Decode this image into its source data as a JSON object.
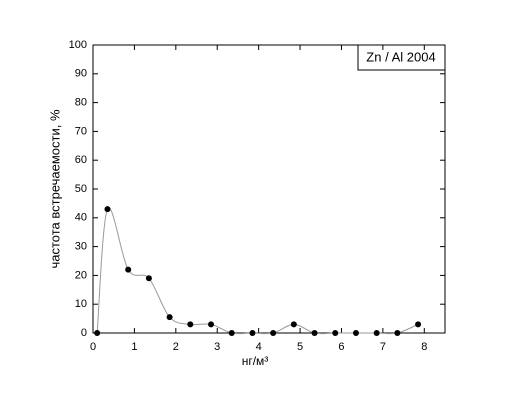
{
  "chart_data": {
    "type": "scatter",
    "title": "Zn / Al 2004",
    "x_label": "нг/м³",
    "y_label": "частота встречаемости, %",
    "series": [
      {
        "name": "Zn / Al 2004",
        "color": "#000000",
        "x": [
          0.1,
          0.35,
          0.85,
          1.35,
          1.85,
          2.35,
          2.85,
          3.35,
          3.85,
          4.35,
          4.85,
          5.35,
          5.85,
          6.35,
          6.85,
          7.35,
          7.85
        ],
        "values": [
          0,
          43,
          22,
          19,
          5.5,
          3,
          3,
          0,
          0,
          0,
          3,
          0,
          0,
          0,
          0,
          0,
          3
        ]
      }
    ],
    "line_color": "#999999",
    "xlim": [
      0,
      8.5
    ],
    "xticks": [
      0,
      1,
      2,
      3,
      4,
      5,
      6,
      7,
      8
    ],
    "ylim": [
      0,
      100
    ],
    "yticks": [
      0,
      10,
      20,
      30,
      40,
      50,
      60,
      70,
      80,
      90,
      100
    ],
    "legend": "top-right"
  }
}
